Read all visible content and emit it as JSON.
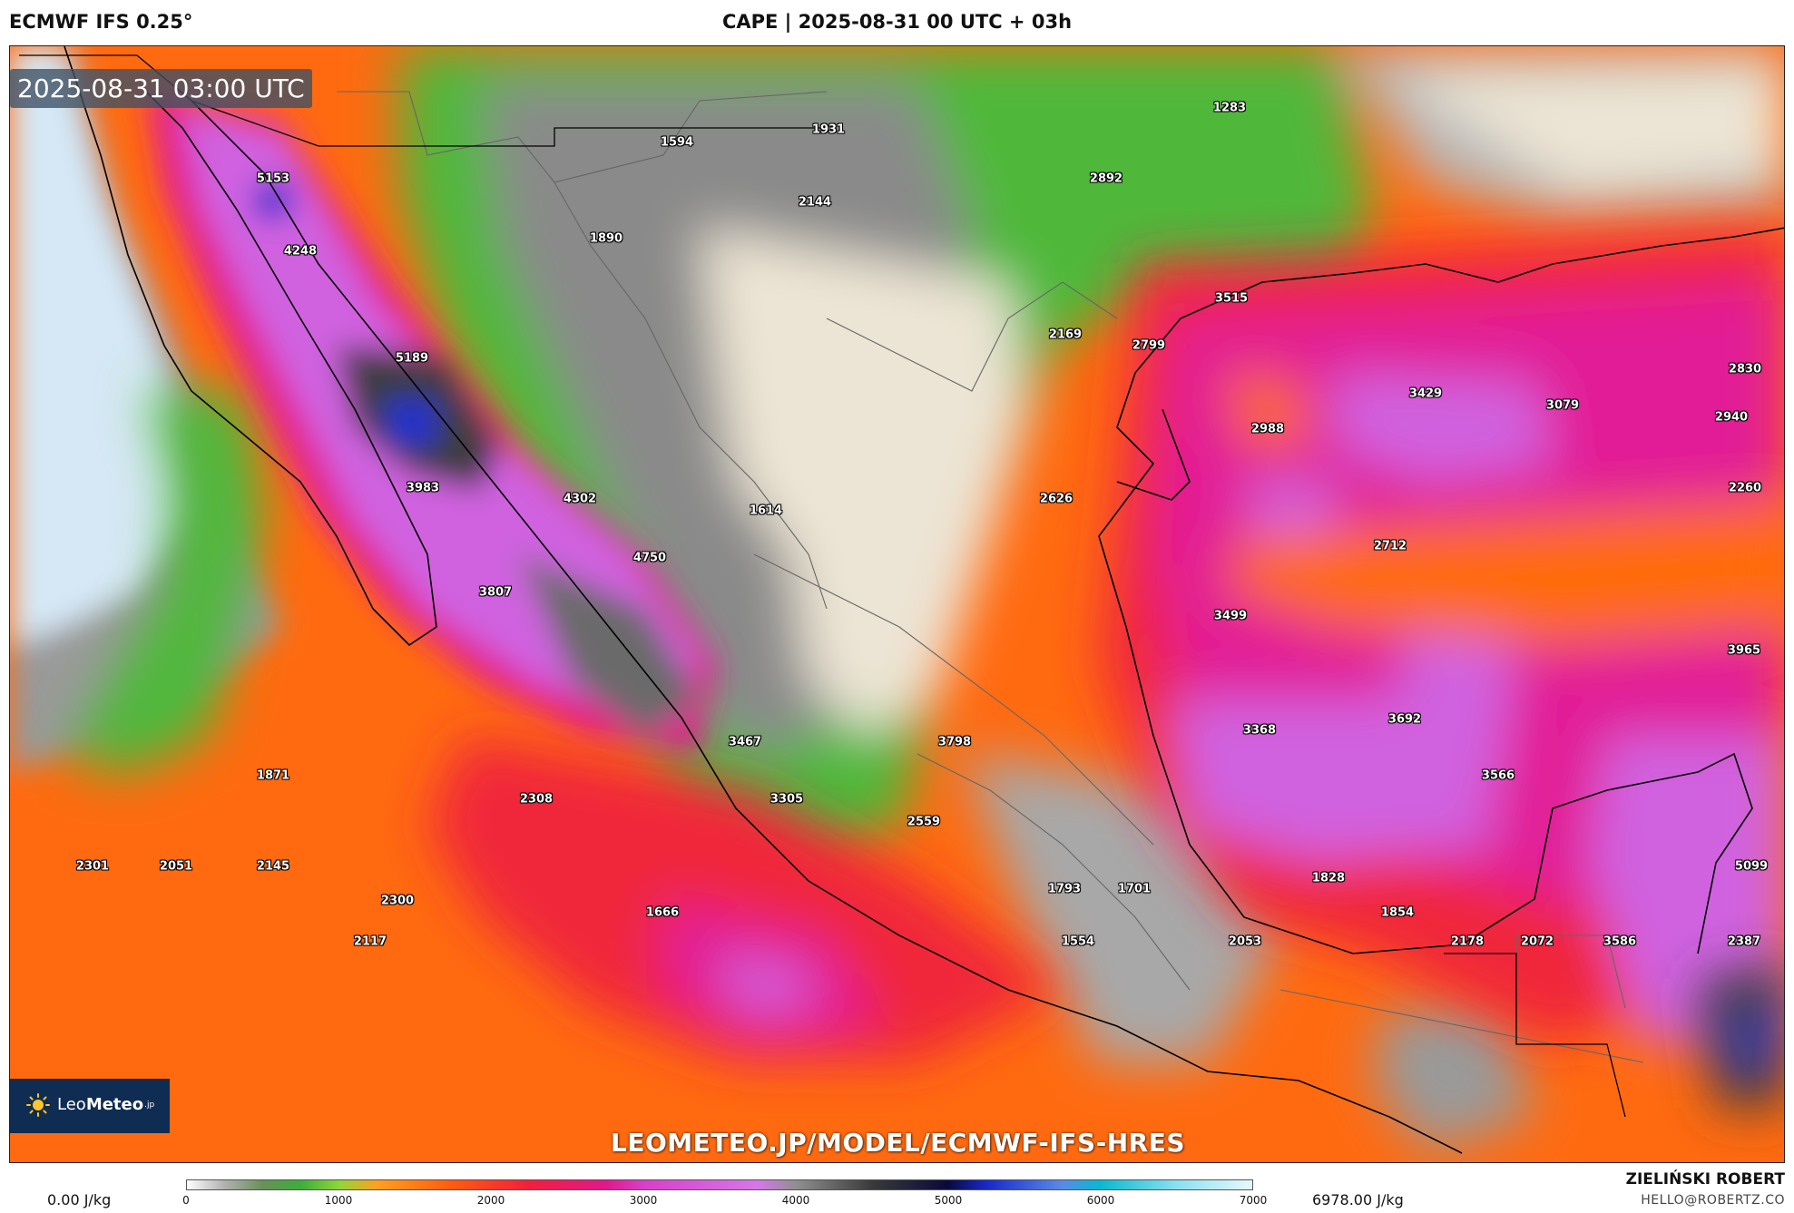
{
  "header": {
    "model": "ECMWF IFS 0.25°",
    "title": "CAPE | 2025-08-31 00 UTC + 03h"
  },
  "map": {
    "valid_time": "2025-08-31 03:00 UTC",
    "watermark": "LEOMETEO.JP/MODEL/ECMWF-IFS-HRES",
    "labels": [
      "1594",
      "1931",
      "1283",
      "5153",
      "2144",
      "2892",
      "4248",
      "1890",
      "3515",
      "5189",
      "2169",
      "2799",
      "3429",
      "2830",
      "3079",
      "2940",
      "2988",
      "3983",
      "4302",
      "2626",
      "1614",
      "2260",
      "4750",
      "2712",
      "3807",
      "3499",
      "3965",
      "3467",
      "3798",
      "3368",
      "3692",
      "1871",
      "2308",
      "3305",
      "3566",
      "2559",
      "2301",
      "2051",
      "2145",
      "1828",
      "5099",
      "1793",
      "1701",
      "2300",
      "1854",
      "1666",
      "2117",
      "1554",
      "2053",
      "2178",
      "2072",
      "3586",
      "2387"
    ],
    "colors": {
      "sea_cold": "#d6e8f6",
      "land_low": "#ece4d4",
      "green": "#4fb83a",
      "orange": "#ff6a10",
      "red": "#f0283a",
      "magenta": "#e21a96",
      "violet": "#d062e0",
      "dark": "#3c3c3c",
      "blue": "#2230d0"
    }
  },
  "logo": {
    "brand_regular": "Leo",
    "brand_bold": "Meteo",
    "suffix": ".jp"
  },
  "legend": {
    "min_label": "0.00 J/kg",
    "max_label": "6978.00 J/kg",
    "ticks": [
      "0",
      "1000",
      "2000",
      "3000",
      "4000",
      "5000",
      "6000",
      "7000"
    ],
    "stops": [
      {
        "value": 0,
        "color": "#ffffff"
      },
      {
        "value": 250,
        "color": "#b0b0b0"
      },
      {
        "value": 500,
        "color": "#6a8f5a"
      },
      {
        "value": 750,
        "color": "#3cae3a"
      },
      {
        "value": 1000,
        "color": "#8fd63a"
      },
      {
        "value": 1250,
        "color": "#ffa020"
      },
      {
        "value": 1750,
        "color": "#ff5a10"
      },
      {
        "value": 2250,
        "color": "#f0203c"
      },
      {
        "value": 2750,
        "color": "#e0188a"
      },
      {
        "value": 3000,
        "color": "#d640c8"
      },
      {
        "value": 3750,
        "color": "#d478e8"
      },
      {
        "value": 4000,
        "color": "#909090"
      },
      {
        "value": 4500,
        "color": "#3a3a3a"
      },
      {
        "value": 5000,
        "color": "#0a0a3a"
      },
      {
        "value": 5250,
        "color": "#1828c8"
      },
      {
        "value": 5750,
        "color": "#5a8ae8"
      },
      {
        "value": 6000,
        "color": "#0ab8d0"
      },
      {
        "value": 6500,
        "color": "#8ae0f0"
      },
      {
        "value": 7000,
        "color": "#e8f8ff"
      }
    ]
  },
  "author": {
    "name": "ZIELIŃSKI ROBERT",
    "email": "HELLO@ROBERTZ.CO"
  }
}
